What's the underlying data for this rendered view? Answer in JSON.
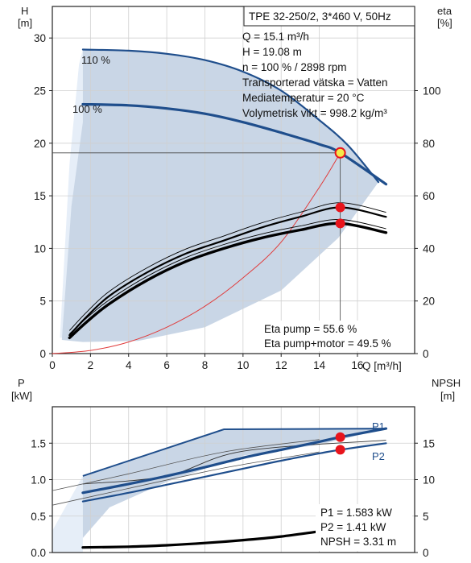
{
  "top_chart": {
    "header": "TPE 32-250/2, 3*460 V, 50Hz",
    "info_lines": [
      "Q = 15.1 m³/h",
      "H = 19.08 m",
      "n = 100 % / 2898 rpm",
      "Transporterad vätska = Vatten",
      "Mediatemperatur = 20 °C",
      "Volymetrisk vikt = 998.2 kg/m³"
    ],
    "eta_lines": [
      "Eta pump = 55.6 %",
      "Eta pump+motor = 49.5 %"
    ],
    "y_left_label": [
      "H",
      "[m]"
    ],
    "y_right_label": [
      "eta",
      "[%]"
    ],
    "x_label": "Q [m³/h]",
    "curve_labels": [
      "110 %",
      "100 %"
    ]
  },
  "bottom_chart": {
    "y_left_label": [
      "P",
      "[kW]"
    ],
    "y_right_label": [
      "NPSH",
      "[m]"
    ],
    "info_lines": [
      "P1 = 1.583 kW",
      "P2 = 1.41 kW",
      "NPSH = 3.31 m"
    ],
    "curve_labels": [
      "P1",
      "P2"
    ]
  },
  "colors": {
    "curve_blue": "#1f4e8c",
    "area_fill": "#c9d6e6",
    "area_light": "#e6eef8",
    "system_curve": "#e03c3c",
    "duty_point": "#e8141c",
    "duty_highlight": "#f5e84a",
    "grid": "#d0d0d0"
  },
  "chart_data": [
    {
      "type": "line",
      "xlabel": "Q [m³/h]",
      "ylabel": "H [m]",
      "y2label": "eta [%]",
      "xlim": [
        0,
        19
      ],
      "ylim": [
        0,
        33
      ],
      "y2lim": [
        0,
        132
      ],
      "xticks": [
        0,
        2,
        4,
        6,
        8,
        10,
        12,
        14,
        16
      ],
      "yticks": [
        0,
        5,
        10,
        15,
        20,
        25,
        30
      ],
      "y2ticks": [
        0,
        20,
        40,
        60,
        80,
        100
      ],
      "grid": true,
      "series": [
        {
          "name": "110 %",
          "axis": "left",
          "x": [
            1.6,
            4,
            6,
            8,
            10,
            12,
            14,
            15.5,
            17.1
          ],
          "y": [
            28.9,
            28.8,
            28.5,
            27.9,
            26.8,
            25.0,
            22.2,
            19.8,
            16.3
          ]
        },
        {
          "name": "100 %",
          "axis": "left",
          "x": [
            1.6,
            4,
            6,
            8,
            10,
            12,
            14,
            15.1,
            17.5
          ],
          "y": [
            23.7,
            23.6,
            23.3,
            22.8,
            22.0,
            21.0,
            19.9,
            19.08,
            16.1
          ]
        },
        {
          "axis": "left",
          "x": [
            0,
            2,
            4,
            6,
            8,
            10,
            12,
            14,
            15.1
          ],
          "y": [
            0,
            0.3,
            1.1,
            2.5,
            4.5,
            7.2,
            10.6,
            15.8,
            19.08
          ]
        },
        {
          "axis": "right",
          "x": [
            0.9,
            1.8,
            3,
            5,
            7,
            9,
            11,
            13,
            15.1,
            17.5
          ],
          "y": [
            7,
            14,
            22,
            31,
            38,
            43,
            48,
            52,
            55.6,
            52
          ]
        },
        {
          "axis": "right",
          "x": [
            0.9,
            1.8,
            3,
            5,
            7,
            9,
            11,
            13,
            15.1,
            17.5
          ],
          "y": [
            6,
            12,
            19,
            28,
            35,
            40,
            44,
            47,
            49.5,
            46
          ]
        }
      ],
      "duty_point": {
        "Q": 15.1,
        "H": 19.08,
        "eta_pump": 55.6,
        "eta_total": 49.5
      }
    },
    {
      "type": "line",
      "ylabel": "P [kW]",
      "y2label": "NPSH [m]",
      "xlim": [
        0,
        19
      ],
      "ylim": [
        0,
        2
      ],
      "y2lim": [
        0,
        20
      ],
      "yticks": [
        0,
        0.5,
        1.0,
        1.5
      ],
      "y2ticks": [
        0,
        5,
        10,
        15
      ],
      "grid": true,
      "series": [
        {
          "name": "P1",
          "axis": "left",
          "x": [
            1.6,
            4,
            6,
            8,
            10,
            12,
            14,
            15.1,
            17.5
          ],
          "y": [
            0.82,
            0.94,
            1.05,
            1.17,
            1.3,
            1.41,
            1.52,
            1.583,
            1.7
          ]
        },
        {
          "name": "P2",
          "axis": "left",
          "x": [
            1.6,
            4,
            6,
            8,
            10,
            12,
            14,
            15.1,
            17.5
          ],
          "y": [
            0.7,
            0.82,
            0.93,
            1.04,
            1.15,
            1.26,
            1.36,
            1.41,
            1.5
          ]
        },
        {
          "axis": "right",
          "x": [
            1.6,
            4,
            6,
            8,
            10,
            12,
            14,
            15.1
          ],
          "y": [
            0.7,
            0.8,
            1.0,
            1.3,
            1.7,
            2.2,
            2.9,
            3.31
          ]
        }
      ],
      "duty_point": {
        "P1": 1.583,
        "P2": 1.41,
        "NPSH": 3.31
      }
    }
  ]
}
